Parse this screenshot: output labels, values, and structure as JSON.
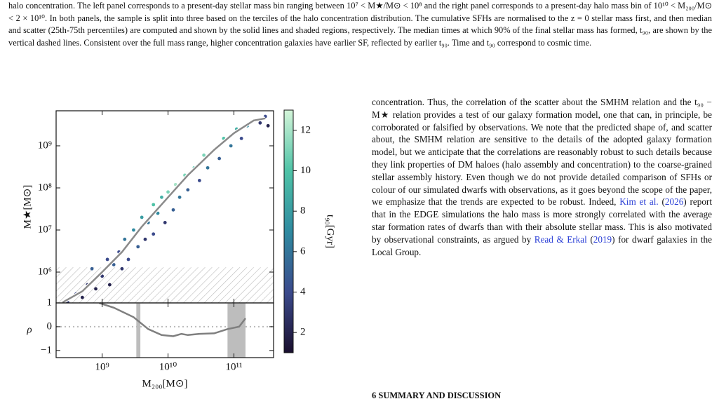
{
  "caption": "halo concentration. The left panel corresponds to a present-day stellar mass bin ranging between 10⁷ < M★/M⊙ < 10⁸ and the right panel corresponds to a present-day halo mass bin of 10¹⁰ < M₂₀₀/M⊙ < 2 × 10¹⁰. In both panels, the sample is split into three based on the terciles of the halo concentration distribution. The cumulative SFHs are normalised to the z = 0 stellar mass first, and then median and scatter (25th-75th percentiles) are computed and shown by the solid lines and shaded regions, respectively. The median times at which 90% of the final stellar mass has formed, t₉₀, are shown by the vertical dashed lines. Consistent over the full mass range, higher concentration galaxies have earlier SF, reflected by earlier t₉₀. Time and t₉₀ correspond to cosmic time.",
  "body": {
    "paragraph": [
      "concentration. Thus, the correlation of the scatter about the SMHM relation and the t₉₀ − M★ relation provides a test of our galaxy formation model, one that can, in principle, be corroborated or falsified by observations. We note that the predicted shape of, and scatter about, the SMHM relation are sensitive to the details of the adopted galaxy formation model, but we anticipate that the correlations are reasonably robust to such details because they link properties of DM haloes (halo assembly and concentration) to the coarse-grained stellar assembly history. Even though we do not provide detailed comparison of SFHs or colour of our simulated dwarfs with observations, as it goes beyond the scope of the paper, we emphasize that the trends are expected to be robust. Indeed, ",
      "Kim et al.",
      " (",
      "2026",
      ") report that in the EDGE simulations the halo mass is more strongly correlated with the average star formation rates of dwarfs than with their absolute stellar mass. This is also motivated by observational constraints, as argued by ",
      "Read & Erkal",
      " (",
      "2019",
      ") for dwarf galaxies in the Local Group."
    ],
    "heading": "6 SUMMARY AND DISCUSSION"
  },
  "chart_data": [
    {
      "type": "scatter",
      "ylabel": "M★[M⊙]",
      "xscale": "log",
      "yscale": "log",
      "xlim": [
        200000000.0,
        400000000000.0
      ],
      "ylim": [
        185000.0,
        6800000000.0
      ],
      "xticks": [
        1000000000.0,
        10000000000.0,
        100000000000.0
      ],
      "yticks": [
        {
          "value": 1000000.0,
          "label": "10⁶"
        },
        {
          "value": 10000000.0,
          "label": "10⁷"
        },
        {
          "value": 100000000.0,
          "label": "10⁸"
        },
        {
          "value": 1000000000.0,
          "label": "10⁹"
        }
      ],
      "x": [
        300000000.0,
        400000000.0,
        500000000.0,
        600000000.0,
        700000000.0,
        800000000.0,
        1000000000.0,
        1200000000.0,
        1300000000.0,
        1500000000.0,
        1800000000.0,
        2000000000.0,
        2200000000.0,
        2500000000.0,
        3000000000.0,
        3500000000.0,
        4000000000.0,
        4500000000.0,
        5000000000.0,
        6000000000.0,
        6000000000.0,
        7000000000.0,
        8000000000.0,
        9000000000.0,
        10000000000.0,
        12000000000.0,
        13000000000.0,
        15000000000.0,
        18000000000.0,
        20000000000.0,
        25000000000.0,
        30000000000.0,
        35000000000.0,
        40000000000.0,
        50000000000.0,
        60000000000.0,
        70000000000.0,
        90000000000.0,
        110000000000.0,
        130000000000.0,
        160000000000.0,
        200000000000.0,
        250000000000.0,
        300000000000.0,
        330000000000.0
      ],
      "y": [
        190000.0,
        300000.0,
        250000.0,
        500000.0,
        1200000.0,
        400000.0,
        800000.0,
        2000000.0,
        500000.0,
        1500000.0,
        3000000.0,
        1200000.0,
        6000000.0,
        2000000.0,
        10000000.0,
        4000000.0,
        20000000.0,
        6000000.0,
        15000000.0,
        40000000.0,
        8000000.0,
        25000000.0,
        60000000.0,
        15000000.0,
        80000000.0,
        30000000.0,
        120000000.0,
        60000000.0,
        200000000.0,
        90000000.0,
        300000000.0,
        150000000.0,
        600000000.0,
        300000000.0,
        800000000.0,
        500000000.0,
        1500000000.0,
        1000000000.0,
        2500000000.0,
        1500000000.0,
        3000000000.0,
        4000000000.0,
        3500000000.0,
        5000000000.0,
        3000000000.0
      ],
      "c": [
        3,
        4,
        2,
        3,
        5,
        2,
        3,
        4,
        2,
        5,
        4,
        3,
        6,
        4,
        7,
        5,
        8,
        3,
        6,
        10,
        4,
        7,
        9,
        3,
        11,
        5,
        12,
        6,
        11,
        5,
        10,
        4,
        11,
        6,
        9,
        5,
        10,
        6,
        9,
        4,
        7,
        5,
        3,
        4,
        2
      ],
      "median": {
        "color": "#8a8a8a",
        "x": [
          250000000.0,
          500000000.0,
          1000000000.0,
          2000000000.0,
          4000000000.0,
          10000000000.0,
          20000000000.0,
          50000000000.0,
          100000000000.0,
          200000000000.0,
          300000000000.0
        ],
        "y": [
          190000.0,
          350000.0,
          1000000.0,
          3000000.0,
          12000000.0,
          60000000.0,
          200000000.0,
          800000000.0,
          2000000000.0,
          4000000000.0,
          4500000000.0
        ]
      },
      "hatch_below": 1300000.0,
      "colorbar": {
        "label": "t₉₀[Gyr]",
        "clim": [
          1,
          13
        ],
        "ticks": [
          2,
          4,
          6,
          8,
          10,
          12
        ],
        "colors": [
          "#1a0f2e",
          "#3b4a8c",
          "#2f8aa0",
          "#4fc3a7",
          "#d4f5d9"
        ]
      }
    },
    {
      "type": "line",
      "xlabel": "M₂₀₀[M⊙]",
      "ylabel": "ρ",
      "xscale": "log",
      "xlim": [
        200000000.0,
        400000000000.0
      ],
      "ylim": [
        -1.3,
        1
      ],
      "xticks": [
        {
          "value": 1000000000.0,
          "label": "10⁹"
        },
        {
          "value": 10000000000.0,
          "label": "10¹⁰"
        },
        {
          "value": 100000000000.0,
          "label": "10¹¹"
        }
      ],
      "yticks": [
        {
          "value": -1,
          "label": "−1"
        },
        0,
        1
      ],
      "color": "#7f7f7f",
      "hline": 0,
      "bands": [
        [
          3300000000.0,
          3800000000.0
        ],
        [
          80000000000.0,
          150000000000.0
        ]
      ],
      "x": [
        900000000.0,
        1500000000.0,
        3000000000.0,
        5000000000.0,
        8000000000.0,
        12000000000.0,
        16000000000.0,
        20000000000.0,
        30000000000.0,
        50000000000.0,
        80000000000.0,
        120000000000.0,
        150000000000.0
      ],
      "y": [
        1,
        0.8,
        0.4,
        -0.1,
        -0.35,
        -0.4,
        -0.3,
        -0.35,
        -0.3,
        -0.28,
        -0.1,
        0,
        0.35
      ]
    }
  ]
}
